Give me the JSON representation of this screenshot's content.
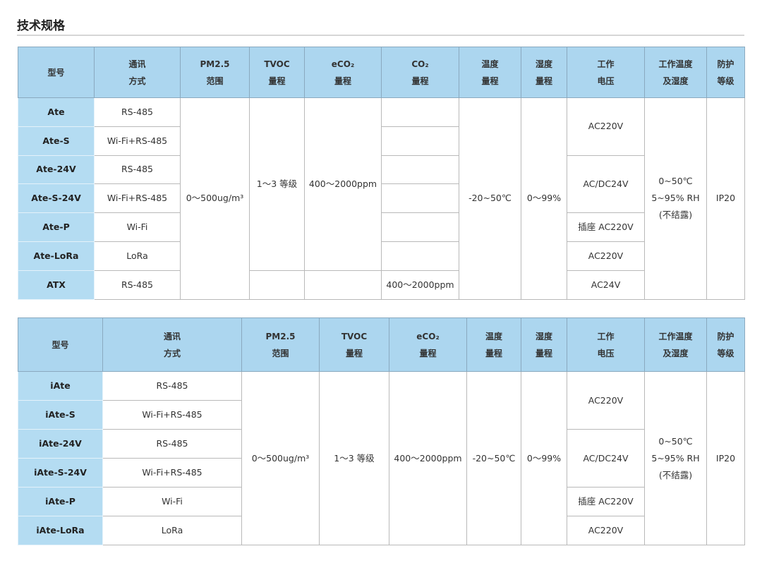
{
  "title": "技术规格",
  "table1": {
    "headers": [
      [
        "型号"
      ],
      [
        "通讯",
        "方式"
      ],
      [
        "PM2.5",
        "范围"
      ],
      [
        "TVOC",
        "量程"
      ],
      [
        "eCO₂",
        "量程"
      ],
      [
        "CO₂",
        "量程"
      ],
      [
        "温度",
        "量程"
      ],
      [
        "湿度",
        "量程"
      ],
      [
        "工作",
        "电压"
      ],
      [
        "工作温度",
        "及湿度"
      ],
      [
        "防护",
        "等级"
      ]
    ],
    "models": [
      "Ate",
      "Ate-S",
      "Ate-24V",
      "Ate-S-24V",
      "Ate-P",
      "Ate-LoRa",
      "ATX"
    ],
    "comm": [
      "RS-485",
      "Wi-Fi+RS-485",
      "RS-485",
      "Wi-Fi+RS-485",
      "Wi-Fi",
      "LoRa",
      "RS-485"
    ],
    "pm25": "0～500ug/m³",
    "tvoc": "1～3 等级",
    "eco2": "400～2000ppm",
    "co2_atx": "400～2000ppm",
    "temp": "-20~50℃",
    "hum": "0～99%",
    "voltage": [
      "AC220V",
      "AC/DC24V",
      "插座 AC220V",
      "AC220V",
      "AC24V"
    ],
    "work": [
      "0~50℃",
      "5~95% RH",
      "(不结露)"
    ],
    "ip": "IP20"
  },
  "table2": {
    "headers": [
      [
        "型号"
      ],
      [
        "通讯",
        "方式"
      ],
      [
        "PM2.5",
        "范围"
      ],
      [
        "TVOC",
        "量程"
      ],
      [
        "eCO₂",
        "量程"
      ],
      [
        "温度",
        "量程"
      ],
      [
        "湿度",
        "量程"
      ],
      [
        "工作",
        "电压"
      ],
      [
        "工作温度",
        "及湿度"
      ],
      [
        "防护",
        "等级"
      ]
    ],
    "models": [
      "iAte",
      "iAte-S",
      "iAte-24V",
      "iAte-S-24V",
      "iAte-P",
      "iAte-LoRa"
    ],
    "comm": [
      "RS-485",
      "Wi-Fi+RS-485",
      "RS-485",
      "Wi-Fi+RS-485",
      "Wi-Fi",
      "LoRa"
    ],
    "pm25": "0～500ug/m³",
    "tvoc": "1～3  等级",
    "eco2": "400～2000ppm",
    "temp": "-20~50℃",
    "hum": "0～99%",
    "voltage": [
      "AC220V",
      "AC/DC24V",
      "插座 AC220V",
      "AC220V"
    ],
    "work": [
      "0~50℃",
      "5~95% RH",
      "(不结露)"
    ],
    "ip": "IP20"
  }
}
